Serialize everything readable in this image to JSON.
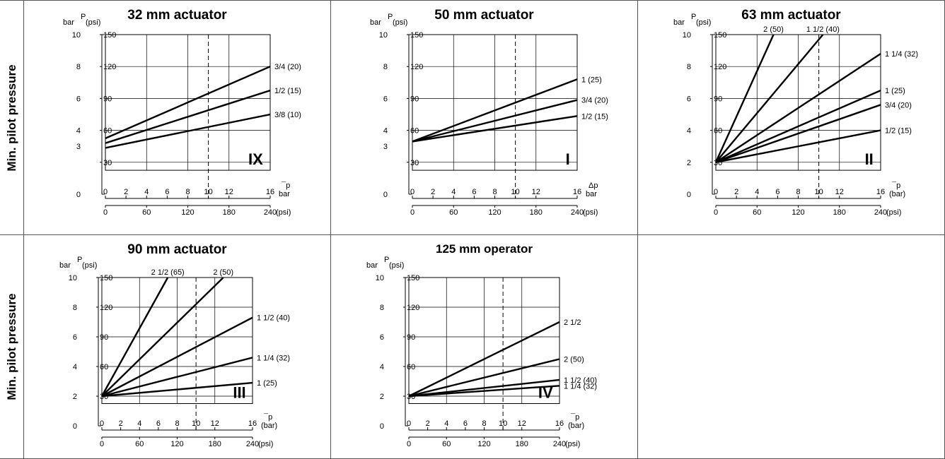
{
  "row_labels": [
    "Min. pilot pressure",
    "Min. pilot pressure"
  ],
  "charts": [
    {
      "title": "32 mm actuator",
      "roman": "IX",
      "y_bar_ticks": [
        "10",
        "8",
        "6",
        "4",
        "3",
        "0"
      ],
      "y_bar_values": [
        10,
        8,
        6,
        4,
        3,
        0
      ],
      "y_psi_ticks": [
        "150",
        "120",
        "90",
        "60",
        "30"
      ],
      "y_psi_values": [
        10,
        8,
        6,
        4,
        2
      ],
      "x_bar_ticks": [
        "0",
        "2",
        "4",
        "6",
        "8",
        "10",
        "12",
        "16"
      ],
      "x_bar_values": [
        0,
        2,
        4,
        6,
        8,
        10,
        12,
        16
      ],
      "x_psi_ticks": [
        "0",
        "60",
        "120",
        "180",
        "240"
      ],
      "x_psi_values": [
        0,
        4,
        8,
        12,
        16
      ],
      "x_bar_unit": "bar",
      "x_top_unit": "¯p",
      "x_psi_unit": "(psi)",
      "y_unit_bar": "bar",
      "y_unit_p": "P",
      "y_unit_psi": "(psi)",
      "dashed_x": 10,
      "series": [
        {
          "name": "3/4  (20)",
          "x": [
            0,
            16
          ],
          "y": [
            3.5,
            8
          ]
        },
        {
          "name": "1/2  (15)",
          "x": [
            0,
            16
          ],
          "y": [
            3.2,
            6.5
          ]
        },
        {
          "name": "3/8  (10)",
          "x": [
            0,
            16
          ],
          "y": [
            2.9,
            5
          ]
        }
      ],
      "label_side": "right"
    },
    {
      "title": "50 mm actuator",
      "roman": "I",
      "y_bar_ticks": [
        "10",
        "8",
        "6",
        "4",
        "3",
        "0"
      ],
      "y_bar_values": [
        10,
        8,
        6,
        4,
        3,
        0
      ],
      "y_psi_ticks": [
        "150",
        "120",
        "90",
        "60",
        "30"
      ],
      "y_psi_values": [
        10,
        8,
        6,
        4,
        2
      ],
      "x_bar_ticks": [
        "0",
        "2",
        "4",
        "6",
        "8",
        "10",
        "12",
        "16"
      ],
      "x_bar_values": [
        0,
        2,
        4,
        6,
        8,
        10,
        12,
        16
      ],
      "x_psi_ticks": [
        "0",
        "60",
        "120",
        "180",
        "240"
      ],
      "x_psi_values": [
        0,
        4,
        8,
        12,
        16
      ],
      "x_bar_unit": "bar",
      "x_top_unit": "Δp",
      "x_psi_unit": "(psi)",
      "y_unit_bar": "bar",
      "y_unit_p": "P",
      "y_unit_psi": "(psi)",
      "dashed_x": 10,
      "series": [
        {
          "name": "1     (25)",
          "x": [
            0,
            16
          ],
          "y": [
            3.3,
            7.2
          ]
        },
        {
          "name": "3/4  (20)",
          "x": [
            0,
            16
          ],
          "y": [
            3.3,
            5.9
          ]
        },
        {
          "name": "1/2  (15)",
          "x": [
            0,
            16
          ],
          "y": [
            3.3,
            4.9
          ]
        }
      ],
      "label_side": "right"
    },
    {
      "title": "63 mm actuator",
      "roman": "II",
      "y_bar_ticks": [
        "10",
        "8",
        "6",
        "4",
        "2",
        "0"
      ],
      "y_bar_values": [
        10,
        8,
        6,
        4,
        2,
        0
      ],
      "y_psi_ticks": [
        "150",
        "120",
        "90",
        "60",
        "30"
      ],
      "y_psi_values": [
        10,
        8,
        6,
        4,
        2
      ],
      "x_bar_ticks": [
        "0",
        "2",
        "4",
        "6",
        "8",
        "10",
        "12",
        "16"
      ],
      "x_bar_values": [
        0,
        2,
        4,
        6,
        8,
        10,
        12,
        16
      ],
      "x_psi_ticks": [
        "0",
        "60",
        "120",
        "180",
        "240"
      ],
      "x_psi_values": [
        0,
        4,
        8,
        12,
        16
      ],
      "x_bar_unit": "(bar)",
      "x_top_unit": "¯p",
      "x_psi_unit": "(psi)",
      "y_unit_bar": "bar",
      "y_unit_p": "P",
      "y_unit_psi": "(psi)",
      "dashed_x": 10,
      "series": [
        {
          "name": "2 (50)",
          "x": [
            0,
            5.6
          ],
          "y": [
            2,
            10
          ],
          "label_pos": "top"
        },
        {
          "name": "1 1/2  (40)",
          "x": [
            0,
            10.4
          ],
          "y": [
            2,
            10
          ],
          "label_pos": "top"
        },
        {
          "name": "1 1/4 (32)",
          "x": [
            0,
            16
          ],
          "y": [
            2,
            8.8
          ]
        },
        {
          "name": "1     (25)",
          "x": [
            0,
            16
          ],
          "y": [
            2,
            6.5
          ]
        },
        {
          "name": "3/4 (20)",
          "x": [
            0,
            16
          ],
          "y": [
            2,
            5.6
          ]
        },
        {
          "name": "1/2 (15)",
          "x": [
            0,
            16
          ],
          "y": [
            2,
            4
          ]
        }
      ],
      "label_side": "right"
    },
    {
      "title": "90 mm actuator",
      "roman": "III",
      "y_bar_ticks": [
        "10",
        "8",
        "6",
        "4",
        "2",
        "0"
      ],
      "y_bar_values": [
        10,
        8,
        6,
        4,
        2,
        0
      ],
      "y_psi_ticks": [
        "150",
        "120",
        "90",
        "60",
        "30"
      ],
      "y_psi_values": [
        10,
        8,
        6,
        4,
        2
      ],
      "x_bar_ticks": [
        "0",
        "2",
        "4",
        "6",
        "8",
        "10",
        "12",
        "16"
      ],
      "x_bar_values": [
        0,
        2,
        4,
        6,
        8,
        10,
        12,
        16
      ],
      "x_psi_ticks": [
        "0",
        "60",
        "120",
        "180",
        "240"
      ],
      "x_psi_values": [
        0,
        4,
        8,
        12,
        16
      ],
      "x_bar_unit": "(bar)",
      "x_top_unit": "¯p",
      "x_psi_unit": "(psi)",
      "y_unit_bar": "bar",
      "y_unit_p": "P",
      "y_unit_psi": "(psi)",
      "dashed_x": 10,
      "series": [
        {
          "name": "2 1/2  (65)",
          "x": [
            0,
            7
          ],
          "y": [
            2,
            10
          ],
          "label_pos": "top"
        },
        {
          "name": "2  (50)",
          "x": [
            0,
            12.9
          ],
          "y": [
            2,
            10
          ],
          "label_pos": "top"
        },
        {
          "name": "1 1/2 (40)",
          "x": [
            0,
            16
          ],
          "y": [
            2,
            7.3
          ]
        },
        {
          "name": "1 1/4 (32)",
          "x": [
            0,
            16
          ],
          "y": [
            2,
            4.6
          ]
        },
        {
          "name": "1       (25)",
          "x": [
            0,
            16
          ],
          "y": [
            2,
            2.9
          ]
        }
      ],
      "label_side": "right"
    },
    {
      "title": "125 mm operator",
      "roman": "IV",
      "y_bar_ticks": [
        "10",
        "8",
        "6",
        "4",
        "2",
        "0"
      ],
      "y_bar_values": [
        10,
        8,
        6,
        4,
        2,
        0
      ],
      "y_psi_ticks": [
        "150",
        "120",
        "90",
        "60",
        "30"
      ],
      "y_psi_values": [
        10,
        8,
        6,
        4,
        2
      ],
      "x_bar_ticks": [
        "0",
        "2",
        "4",
        "6",
        "8",
        "10",
        "12",
        "16"
      ],
      "x_bar_values": [
        0,
        2,
        4,
        6,
        8,
        10,
        12,
        16
      ],
      "x_psi_ticks": [
        "0",
        "60",
        "120",
        "180",
        "240"
      ],
      "x_psi_values": [
        0,
        4,
        8,
        12,
        16
      ],
      "x_bar_unit": "(bar)",
      "x_top_unit": "¯p",
      "x_psi_unit": "(psi)",
      "y_unit_bar": "bar",
      "y_unit_p": "P",
      "y_unit_psi": "(psi)",
      "dashed_x": 10,
      "series": [
        {
          "name": "2 1/2",
          "x": [
            0,
            16
          ],
          "y": [
            2,
            7
          ]
        },
        {
          "name": "2 (50)",
          "x": [
            0,
            16
          ],
          "y": [
            2,
            4.5
          ]
        },
        {
          "name": "1 1/2 (40)",
          "x": [
            0,
            16
          ],
          "y": [
            2,
            3.1
          ]
        },
        {
          "name": "1 1/4 (32)",
          "x": [
            0,
            16
          ],
          "y": [
            2,
            2.7
          ]
        }
      ],
      "label_side": "right"
    }
  ]
}
